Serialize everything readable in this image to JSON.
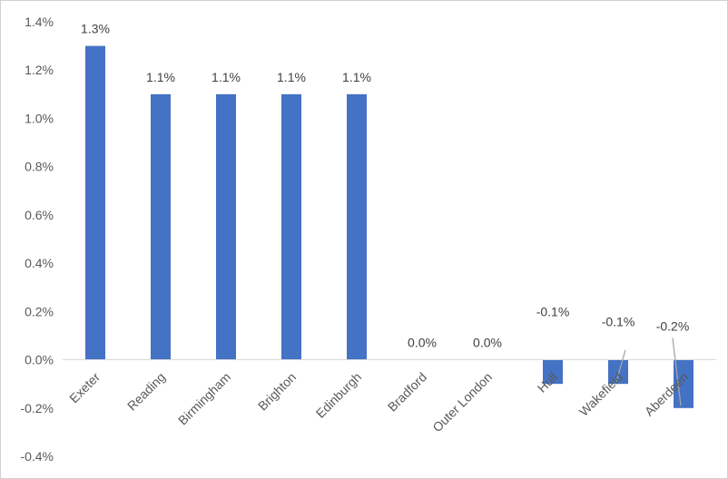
{
  "chart_data": {
    "type": "bar",
    "categories": [
      "Exeter",
      "Reading",
      "Birmingham",
      "Brighton",
      "Edinburgh",
      "Bradford",
      "Outer London",
      "Hull",
      "Wakefield",
      "Aberdeen"
    ],
    "values": [
      1.3,
      1.1,
      1.1,
      1.1,
      1.1,
      0.0,
      0.0,
      -0.1,
      -0.1,
      -0.2
    ],
    "data_labels": [
      "1.3%",
      "1.1%",
      "1.1%",
      "1.1%",
      "1.1%",
      "0.0%",
      "0.0%",
      "-0.1%",
      "-0.1%",
      "-0.2%"
    ],
    "y_ticks": [
      {
        "value": 1.4,
        "label": "1.4%"
      },
      {
        "value": 1.2,
        "label": "1.2%"
      },
      {
        "value": 1.0,
        "label": "1.0%"
      },
      {
        "value": 0.8,
        "label": "0.8%"
      },
      {
        "value": 0.6,
        "label": "0.6%"
      },
      {
        "value": 0.4,
        "label": "0.4%"
      },
      {
        "value": 0.2,
        "label": "0.2%"
      },
      {
        "value": 0.0,
        "label": "0.0%"
      },
      {
        "value": -0.2,
        "label": "-0.2%"
      },
      {
        "value": -0.4,
        "label": "-0.4%"
      }
    ],
    "ylim": [
      -0.4,
      1.4
    ],
    "title": "",
    "xlabel": "",
    "ylabel": "",
    "grid": false,
    "legend": "none",
    "colors": {
      "bar": "#4472c4",
      "axis": "#d9d9d9",
      "leader": "#a6a6a6"
    }
  }
}
